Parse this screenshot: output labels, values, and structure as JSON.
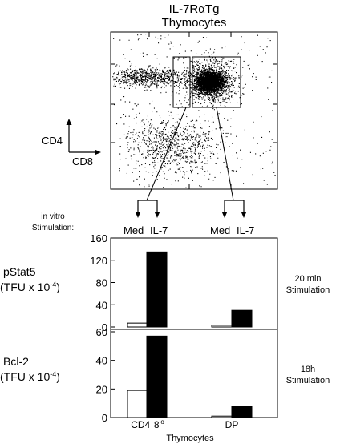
{
  "title": {
    "line1": "IL-7RαTg",
    "line2": "Thymocytes"
  },
  "flow_plot": {
    "y_axis_label": "CD4",
    "x_axis_label": "CD8",
    "gates": [
      "CD4+8lo",
      "DP"
    ]
  },
  "stimulation": {
    "label_line1": "in vitro",
    "label_line2": "Stimulation:",
    "groups": [
      {
        "med": "Med",
        "il7": "IL-7"
      },
      {
        "med": "Med",
        "il7": "IL-7"
      }
    ]
  },
  "panels": [
    {
      "ylabel_line1": "pStat5",
      "ylabel_line2": "(TFU x 10",
      "ylabel_exp": "-4",
      "ylabel_close": ")",
      "note_line1": "20 min",
      "note_line2": "Stimulation"
    },
    {
      "ylabel_line1": "Bcl-2",
      "ylabel_line2": "(TFU x 10",
      "ylabel_exp": "-4",
      "ylabel_close": ")",
      "note_line1": "18h",
      "note_line2": "Stimulation"
    }
  ],
  "xaxis": {
    "cat1_base": "CD4",
    "cat1_sup1": "+",
    "cat1_mid": "8",
    "cat1_sup2": "lo",
    "cat2": "DP",
    "title": "Thymocytes"
  },
  "chart_data": [
    {
      "type": "scatter",
      "title": "IL-7RαTg Thymocytes",
      "xlabel": "CD8",
      "ylabel": "CD4",
      "gates": [
        "CD4+8lo",
        "DP"
      ]
    },
    {
      "type": "bar",
      "ylabel": "pStat5 (TFU x 10-4)",
      "annotation": "20 min Stimulation",
      "categories": [
        "CD4+8lo",
        "DP"
      ],
      "series": [
        {
          "name": "Med",
          "values": [
            7,
            3
          ]
        },
        {
          "name": "IL-7",
          "values": [
            135,
            30
          ]
        }
      ],
      "ylim": [
        0,
        160
      ],
      "yticks": [
        0,
        40,
        80,
        120,
        160
      ]
    },
    {
      "type": "bar",
      "ylabel": "Bcl-2 (TFU x 10-4)",
      "annotation": "18h Stimulation",
      "categories": [
        "CD4+8lo",
        "DP"
      ],
      "series": [
        {
          "name": "Med",
          "values": [
            19,
            1
          ]
        },
        {
          "name": "IL-7",
          "values": [
            57,
            8
          ]
        }
      ],
      "ylim": [
        0,
        60
      ],
      "yticks": [
        0,
        20,
        40,
        60
      ]
    }
  ]
}
